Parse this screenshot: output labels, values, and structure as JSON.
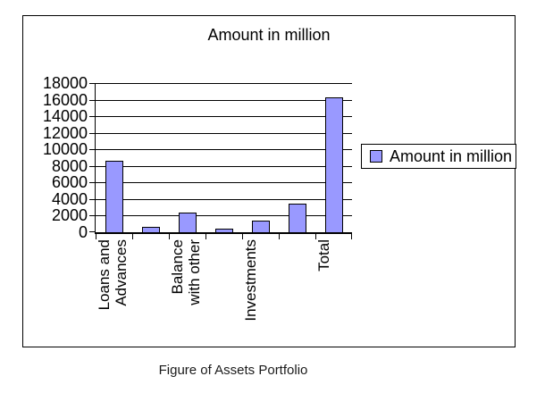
{
  "chart_data": {
    "type": "bar",
    "title": "Amount in million",
    "categories": [
      "Loans and\nAdvances",
      "",
      "Balance\nwith other",
      "",
      "Investments",
      "",
      "Total"
    ],
    "series": [
      {
        "name": "Amount in million",
        "values": [
          8500,
          500,
          2300,
          300,
          1300,
          3300,
          16200
        ]
      }
    ],
    "ylim": [
      0,
      18000
    ],
    "yticks": [
      0,
      2000,
      4000,
      6000,
      8000,
      10000,
      12000,
      14000,
      16000,
      18000
    ],
    "grid": true,
    "legend_position": "right",
    "colors": {
      "bar_fill": "#9999FF",
      "bar_border": "#000000",
      "gridline": "#000000",
      "axis": "#000000"
    }
  },
  "legend": {
    "label": "Amount in million",
    "swatch_color": "#9999FF"
  },
  "caption": "Figure of Assets Portfolio"
}
